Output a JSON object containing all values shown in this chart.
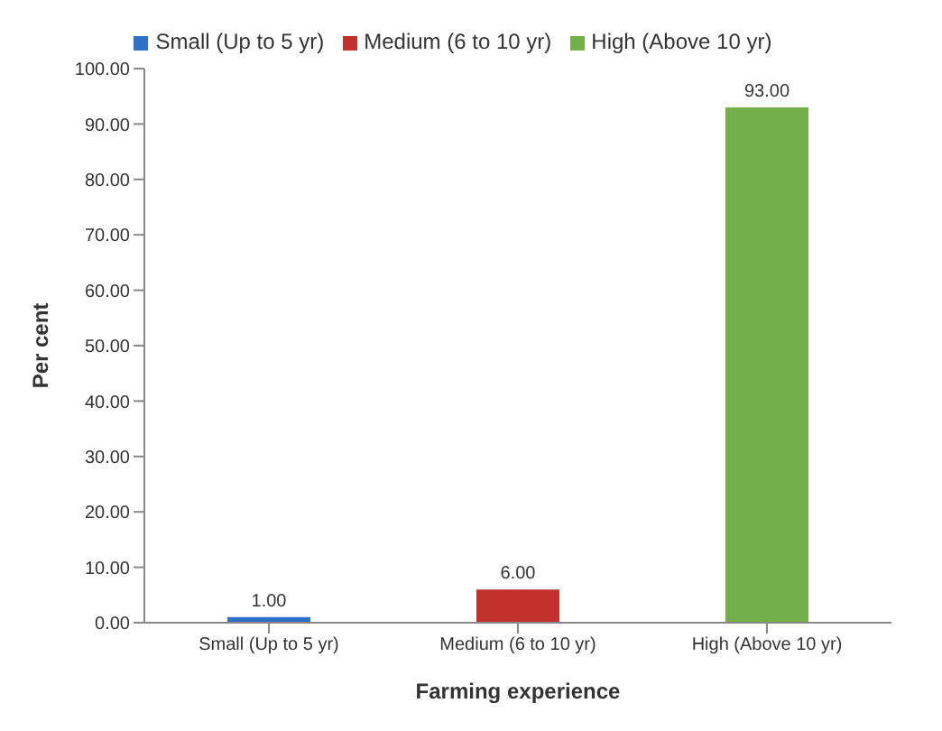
{
  "chart_data": {
    "type": "bar",
    "categories": [
      "Small (Up to 5 yr)",
      "Medium (6 to 10 yr)",
      "High (Above 10 yr)"
    ],
    "series": [
      {
        "name": "Small (Up to 5 yr)",
        "color": "#2f6fc6",
        "values": [
          1,
          null,
          null
        ],
        "value_labels": [
          "1.00",
          null,
          null
        ]
      },
      {
        "name": "Medium (6 to 10 yr)",
        "color": "#c2312b",
        "values": [
          null,
          6,
          null
        ],
        "value_labels": [
          null,
          "6.00",
          null
        ]
      },
      {
        "name": "High (Above 10 yr)",
        "color": "#74b04a",
        "values": [
          null,
          null,
          93
        ],
        "value_labels": [
          null,
          null,
          "93.00"
        ]
      }
    ],
    "stacked": true,
    "xlabel": "Farming experience",
    "ylabel": "Per cent",
    "ylim": [
      0,
      100
    ],
    "yticks": [
      {
        "value": 0,
        "label": "0.00"
      },
      {
        "value": 10,
        "label": "10.00"
      },
      {
        "value": 20,
        "label": "20.00"
      },
      {
        "value": 30,
        "label": "30.00"
      },
      {
        "value": 40,
        "label": "40.00"
      },
      {
        "value": 50,
        "label": "50.00"
      },
      {
        "value": 60,
        "label": "60.00"
      },
      {
        "value": 70,
        "label": "70.00"
      },
      {
        "value": 80,
        "label": "80.00"
      },
      {
        "value": 90,
        "label": "90.00"
      },
      {
        "value": 100,
        "label": "100.00"
      }
    ],
    "legend": "top",
    "grid": false
  }
}
